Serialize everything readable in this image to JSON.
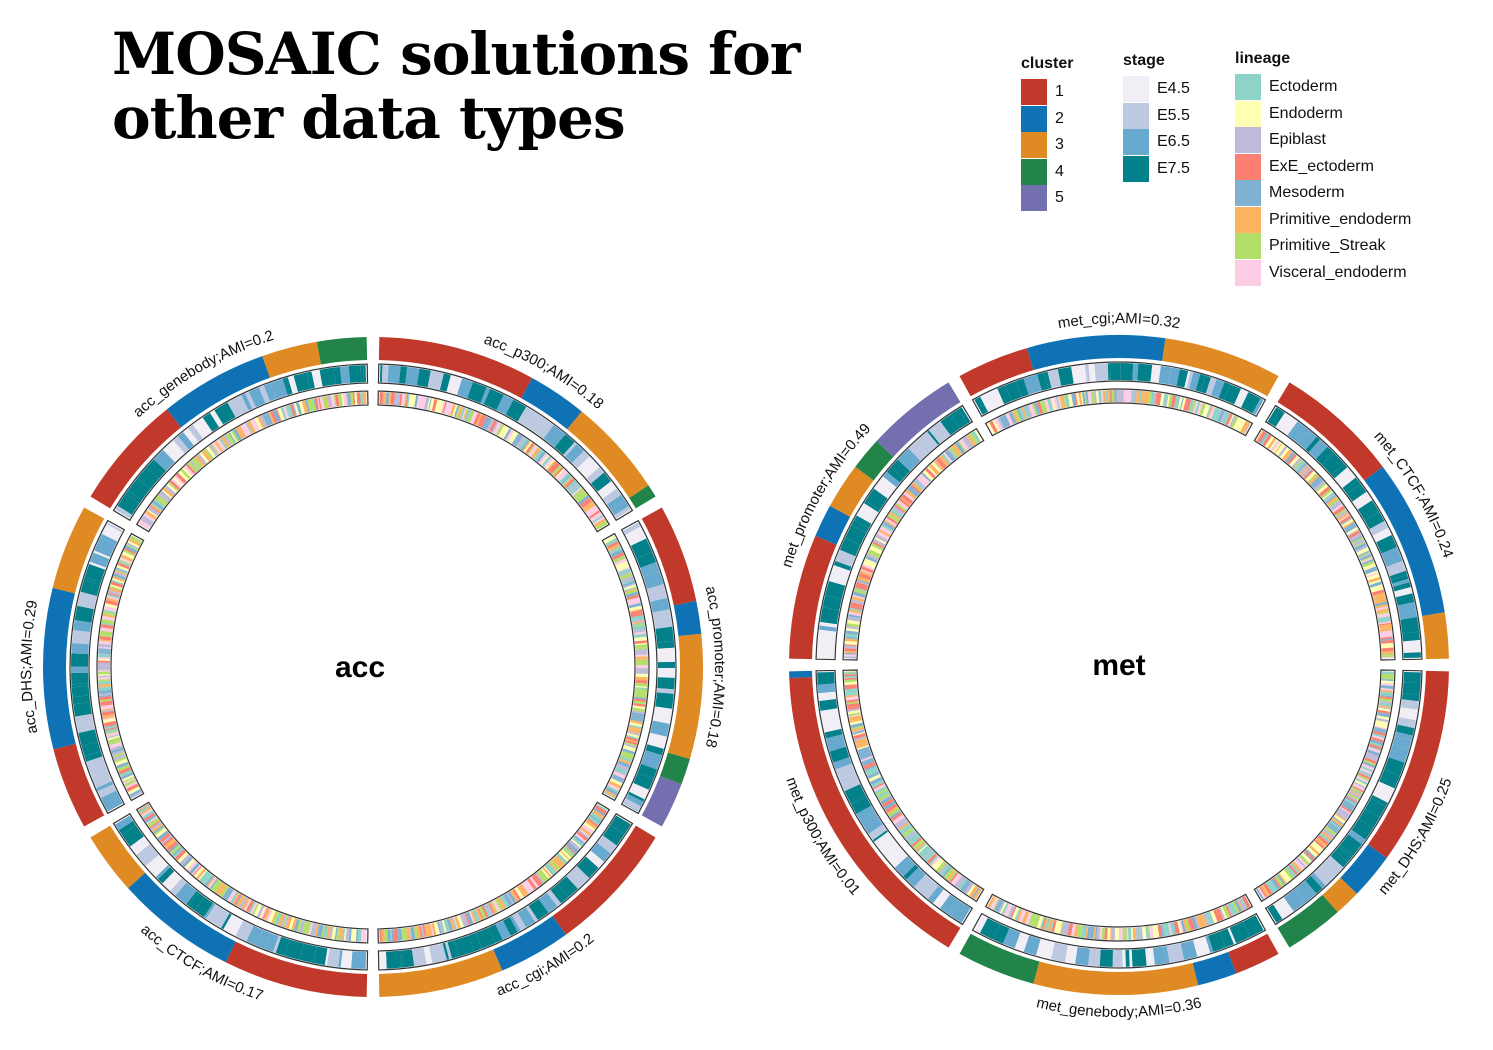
{
  "title": {
    "line1": "MOSAIC solutions for",
    "line2": "other data types"
  },
  "legends": {
    "cluster": {
      "title": "cluster",
      "items": [
        {
          "label": "1",
          "color": "#C0392B"
        },
        {
          "label": "2",
          "color": "#0E72B5"
        },
        {
          "label": "3",
          "color": "#E08A24"
        },
        {
          "label": "4",
          "color": "#238449"
        },
        {
          "label": "5",
          "color": "#7470AF"
        }
      ]
    },
    "stage": {
      "title": "stage",
      "items": [
        {
          "label": "E4.5",
          "color": "#F1EEF6"
        },
        {
          "label": "E5.5",
          "color": "#BDC9E1"
        },
        {
          "label": "E6.5",
          "color": "#67A9CF"
        },
        {
          "label": "E7.5",
          "color": "#02818A"
        }
      ]
    },
    "lineage": {
      "title": "lineage",
      "items": [
        {
          "label": "Ectoderm",
          "color": "#8DD3C7"
        },
        {
          "label": "Endoderm",
          "color": "#FFFFB3"
        },
        {
          "label": "Epiblast",
          "color": "#BEBADA"
        },
        {
          "label": "ExE_ectoderm",
          "color": "#FB8072"
        },
        {
          "label": "Mesoderm",
          "color": "#80B1D3"
        },
        {
          "label": "Primitive_endoderm",
          "color": "#FDB462"
        },
        {
          "label": "Primitive_Streak",
          "color": "#B3DE69"
        },
        {
          "label": "Visceral_endoderm",
          "color": "#FCCDE5"
        }
      ]
    }
  },
  "plots": [
    {
      "center_label": "acc",
      "sectors": [
        {
          "name": "acc_p300;AMI=0.18",
          "clusters": [
            [
              1,
              0.48
            ],
            [
              2,
              0.18
            ],
            [
              3,
              0.3
            ],
            [
              4,
              0.04
            ]
          ]
        },
        {
          "name": "acc_promoter;AMI=0.18",
          "clusters": [
            [
              1,
              0.3
            ],
            [
              2,
              0.1
            ],
            [
              3,
              0.38
            ],
            [
              4,
              0.08
            ],
            [
              5,
              0.14
            ]
          ]
        },
        {
          "name": "acc_cgi;AMI=0.2",
          "clusters": [
            [
              1,
              0.4
            ],
            [
              2,
              0.22
            ],
            [
              3,
              0.38
            ]
          ]
        },
        {
          "name": "acc_CTCF;AMI=0.17",
          "clusters": [
            [
              1,
              0.44
            ],
            [
              2,
              0.37
            ],
            [
              3,
              0.19
            ]
          ]
        },
        {
          "name": "acc_DHS;AMI=0.29",
          "clusters": [
            [
              1,
              0.25
            ],
            [
              2,
              0.49
            ],
            [
              3,
              0.26
            ]
          ]
        },
        {
          "name": "acc_genebody;AMI=0.2",
          "clusters": [
            [
              1,
              0.35
            ],
            [
              2,
              0.33
            ],
            [
              3,
              0.17
            ],
            [
              4,
              0.15
            ]
          ]
        }
      ]
    },
    {
      "center_label": "met",
      "sectors": [
        {
          "name": "met_cgi;AMI=0.32",
          "clusters": [
            [
              1,
              0.22
            ],
            [
              2,
              0.42
            ],
            [
              3,
              0.36
            ]
          ]
        },
        {
          "name": "met_CTCF;AMI=0.24",
          "clusters": [
            [
              1,
              0.38
            ],
            [
              2,
              0.48
            ],
            [
              3,
              0.14
            ]
          ]
        },
        {
          "name": "met_DHS;AMI=0.25",
          "clusters": [
            [
              1,
              0.6
            ],
            [
              2,
              0.14
            ],
            [
              3,
              0.08
            ],
            [
              4,
              0.18
            ]
          ]
        },
        {
          "name": "met_genebody;AMI=0.36",
          "clusters": [
            [
              1,
              0.14
            ],
            [
              2,
              0.12
            ],
            [
              3,
              0.5
            ],
            [
              4,
              0.24
            ]
          ]
        },
        {
          "name": "met_p300;AMI=0.01",
          "clusters": [
            [
              1,
              0.98
            ],
            [
              2,
              0.02
            ]
          ]
        },
        {
          "name": "met_promoter;AMI=0.49",
          "clusters": [
            [
              1,
              0.38
            ],
            [
              2,
              0.1
            ],
            [
              3,
              0.14
            ],
            [
              4,
              0.1
            ],
            [
              5,
              0.28
            ]
          ]
        }
      ]
    }
  ]
}
